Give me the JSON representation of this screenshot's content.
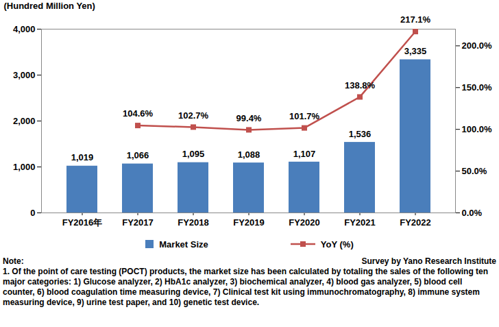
{
  "chart_data": {
    "type": "bar",
    "ylabel": "(Hundred Million Yen)",
    "categories": [
      "FY2016年",
      "FY2017",
      "FY2018",
      "FY2019",
      "FY2020",
      "FY2021",
      "FY2022"
    ],
    "series": [
      {
        "name": "Market Size",
        "type": "bar",
        "color": "#4a7ebb",
        "values": [
          1019,
          1066,
          1095,
          1088,
          1107,
          1536,
          3335
        ],
        "value_labels": [
          "1,019",
          "1,066",
          "1,095",
          "1,088",
          "1,107",
          "1,536",
          "3,335"
        ]
      },
      {
        "name": "YoY (%)",
        "type": "line",
        "axis": "y2",
        "color": "#c0504d",
        "marker": "square",
        "values": [
          null,
          104.6,
          102.7,
          99.4,
          101.7,
          138.8,
          217.1
        ],
        "value_labels": [
          null,
          "104.6%",
          "102.7%",
          "99.4%",
          "101.7%",
          "138.8%",
          "217.1%"
        ]
      }
    ],
    "ylim": [
      0,
      4000
    ],
    "yticks": [
      {
        "value": 0,
        "label": "0"
      },
      {
        "value": 1000,
        "label": "1,000"
      },
      {
        "value": 2000,
        "label": "2,000"
      },
      {
        "value": 3000,
        "label": "3,000"
      },
      {
        "value": 4000,
        "label": "4,000"
      }
    ],
    "y2lim": [
      0,
      220
    ],
    "y2ticks": [
      {
        "value": 0,
        "label": "0.0%"
      },
      {
        "value": 50,
        "label": "50.0%"
      },
      {
        "value": 100,
        "label": "100.0%"
      },
      {
        "value": 150,
        "label": "150.0%"
      },
      {
        "value": 200,
        "label": "200.0%"
      }
    ],
    "data_labels": true,
    "grid": false,
    "legend": "bottom",
    "annotations": [
      "Note:",
      "Survey by Yano Research Institute",
      "1. Of the point of care testing (POCT) products, the market size has been calculated by totaling the sales of the following ten major categories: 1) Glucose analyzer, 2) HbA1c analyzer, 3) biochemical analyzer, 4) blood gas analyzer, 5) blood cell counter, 6) blood coagulation time measuring device, 7) Clinical test kit using immunochromatography, 8) immune system measuring device, 9) urine test paper, and 10) genetic test device."
    ]
  }
}
